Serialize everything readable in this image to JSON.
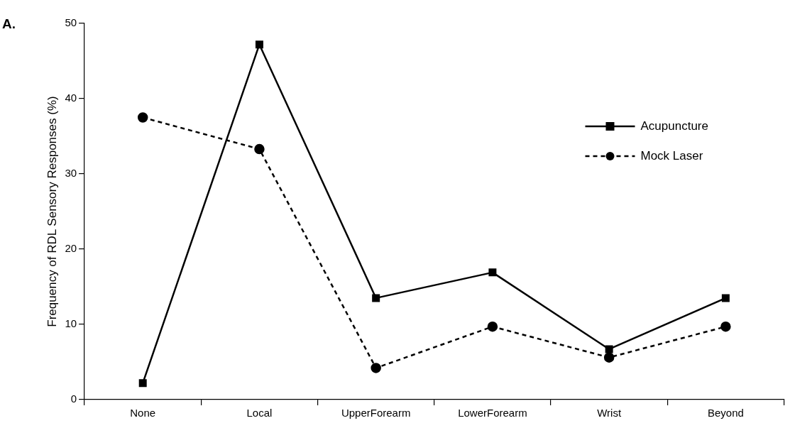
{
  "chart_data": {
    "type": "line",
    "ylabel": "Frequency of RDL Sensory Responses (%)",
    "annotations": [
      "A."
    ],
    "categories": [
      "None",
      "Local",
      "UpperForearm",
      "LowerForearm",
      "Wrist",
      "Beyond"
    ],
    "series": [
      {
        "name": "Acupuncture",
        "color": "#000000",
        "values": [
          2.2,
          47.2,
          13.5,
          16.9,
          6.7,
          13.5
        ],
        "marker": "square",
        "line_style": "solid"
      },
      {
        "name": "Mock Laser",
        "color": "#000000",
        "values": [
          37.5,
          33.3,
          4.2,
          9.7,
          5.6,
          9.7
        ],
        "marker": "circle",
        "line_style": "dashed"
      }
    ],
    "ylim": [
      0,
      50
    ],
    "yticks": [
      0,
      10,
      20,
      30,
      40,
      50
    ],
    "grid": false,
    "legend": "right"
  }
}
